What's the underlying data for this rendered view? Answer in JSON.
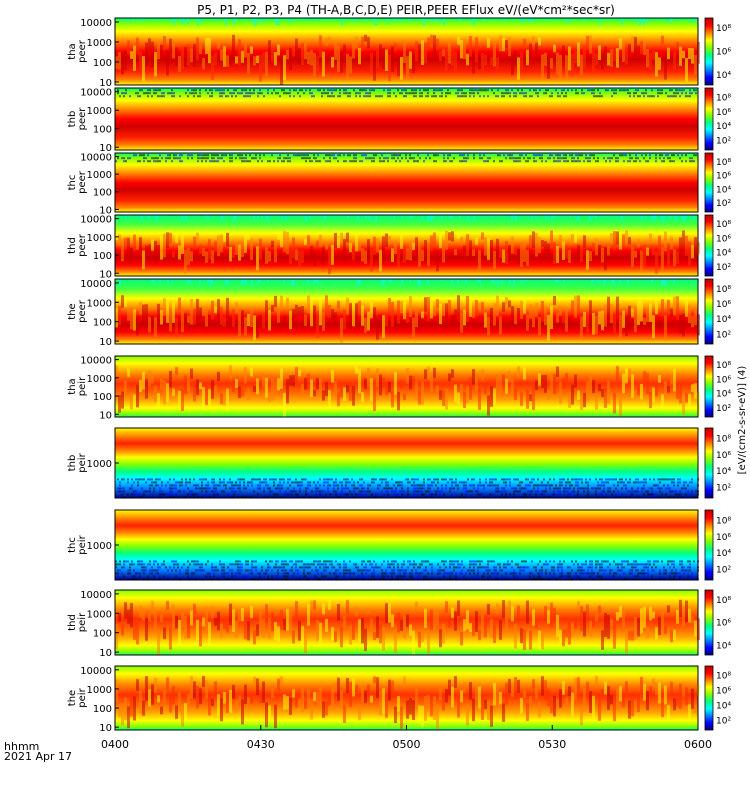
{
  "title": "P5, P1, P2, P3, P4 (TH-A,B,C,D,E) PEIR,PEER EFlux eV/(eV*cm²*sec*sr)",
  "colorbar_unit": "[eV/(cm2-s-sr-eV)] (4)",
  "time_labels": {
    "prefix": "hhmm",
    "date": "2021 Apr 17",
    "ticks": [
      "0400",
      "0430",
      "0500",
      "0530",
      "0600"
    ]
  },
  "palette": [
    "#000080",
    "#0000ff",
    "#0080ff",
    "#00ffff",
    "#00ff80",
    "#80ff00",
    "#ffff00",
    "#ff8000",
    "#ff0000",
    "#c00000"
  ],
  "chart_data": {
    "type": "heatmap",
    "x_range": [
      "0400",
      "0600"
    ],
    "panels": [
      {
        "probe": "tha",
        "species": "peer",
        "label": [
          "tha",
          "peer"
        ],
        "yscale": "log",
        "yticks": [
          "10000",
          "1000",
          "100",
          "10"
        ],
        "cbar_ticks": [
          "10⁸",
          "10⁶",
          "10⁴"
        ],
        "band": "high",
        "pattern": "a"
      },
      {
        "probe": "thb",
        "species": "peer",
        "label": [
          "thb",
          "peer"
        ],
        "yscale": "log",
        "yticks": [
          "10000",
          "1000",
          "100",
          "10"
        ],
        "cbar_ticks": [
          "10⁸",
          "10⁶",
          "10⁴",
          "10²"
        ],
        "band": "high",
        "pattern": "b"
      },
      {
        "probe": "thc",
        "species": "peer",
        "label": [
          "thc",
          "peer"
        ],
        "yscale": "log",
        "yticks": [
          "10000",
          "1000",
          "100",
          "10"
        ],
        "cbar_ticks": [
          "10⁸",
          "10⁶",
          "10⁴",
          "10²"
        ],
        "band": "high",
        "pattern": "b"
      },
      {
        "probe": "thd",
        "species": "peer",
        "label": [
          "thd",
          "peer"
        ],
        "yscale": "log",
        "yticks": [
          "10000",
          "1000",
          "100",
          "10"
        ],
        "cbar_ticks": [
          "10⁸",
          "10⁶",
          "10⁴",
          "10²"
        ],
        "band": "mid",
        "pattern": "a"
      },
      {
        "probe": "the",
        "species": "peer",
        "label": [
          "the",
          "peer"
        ],
        "yscale": "log",
        "yticks": [
          "10000",
          "1000",
          "100",
          "10"
        ],
        "cbar_ticks": [
          "10⁸",
          "10⁶",
          "10⁴",
          "10²"
        ],
        "band": "mid",
        "pattern": "a"
      },
      {
        "probe": "tha",
        "species": "peir",
        "label": [
          "tha",
          "peir"
        ],
        "yscale": "log",
        "yticks": [
          "10000",
          "1000",
          "100",
          "10"
        ],
        "cbar_ticks": [
          "10⁸",
          "10⁶",
          "10⁴",
          "10²"
        ],
        "band": "upper",
        "pattern": "i"
      },
      {
        "probe": "thb",
        "species": "peir",
        "label": [
          "thb",
          "peir"
        ],
        "yscale": "log",
        "yticks": [
          "1000"
        ],
        "cbar_ticks": [
          "10⁸",
          "10⁶",
          "10⁴",
          "10²"
        ],
        "band": "top",
        "pattern": "c"
      },
      {
        "probe": "thc",
        "species": "peir",
        "label": [
          "thc",
          "peir"
        ],
        "yscale": "log",
        "yticks": [
          "1000"
        ],
        "cbar_ticks": [
          "10⁸",
          "10⁶",
          "10⁴",
          "10²"
        ],
        "band": "top",
        "pattern": "c"
      },
      {
        "probe": "thd",
        "species": "peir",
        "label": [
          "thd",
          "peir"
        ],
        "yscale": "log",
        "yticks": [
          "10000",
          "1000",
          "100",
          "10"
        ],
        "cbar_ticks": [
          "10⁸",
          "10⁶",
          "10⁴"
        ],
        "band": "upper",
        "pattern": "i"
      },
      {
        "probe": "the",
        "species": "peir",
        "label": [
          "the",
          "peir"
        ],
        "yscale": "log",
        "yticks": [
          "10000",
          "1000",
          "100",
          "10"
        ],
        "cbar_ticks": [
          "10⁸",
          "10⁶",
          "10⁴",
          "10²"
        ],
        "band": "upper",
        "pattern": "i"
      }
    ]
  }
}
